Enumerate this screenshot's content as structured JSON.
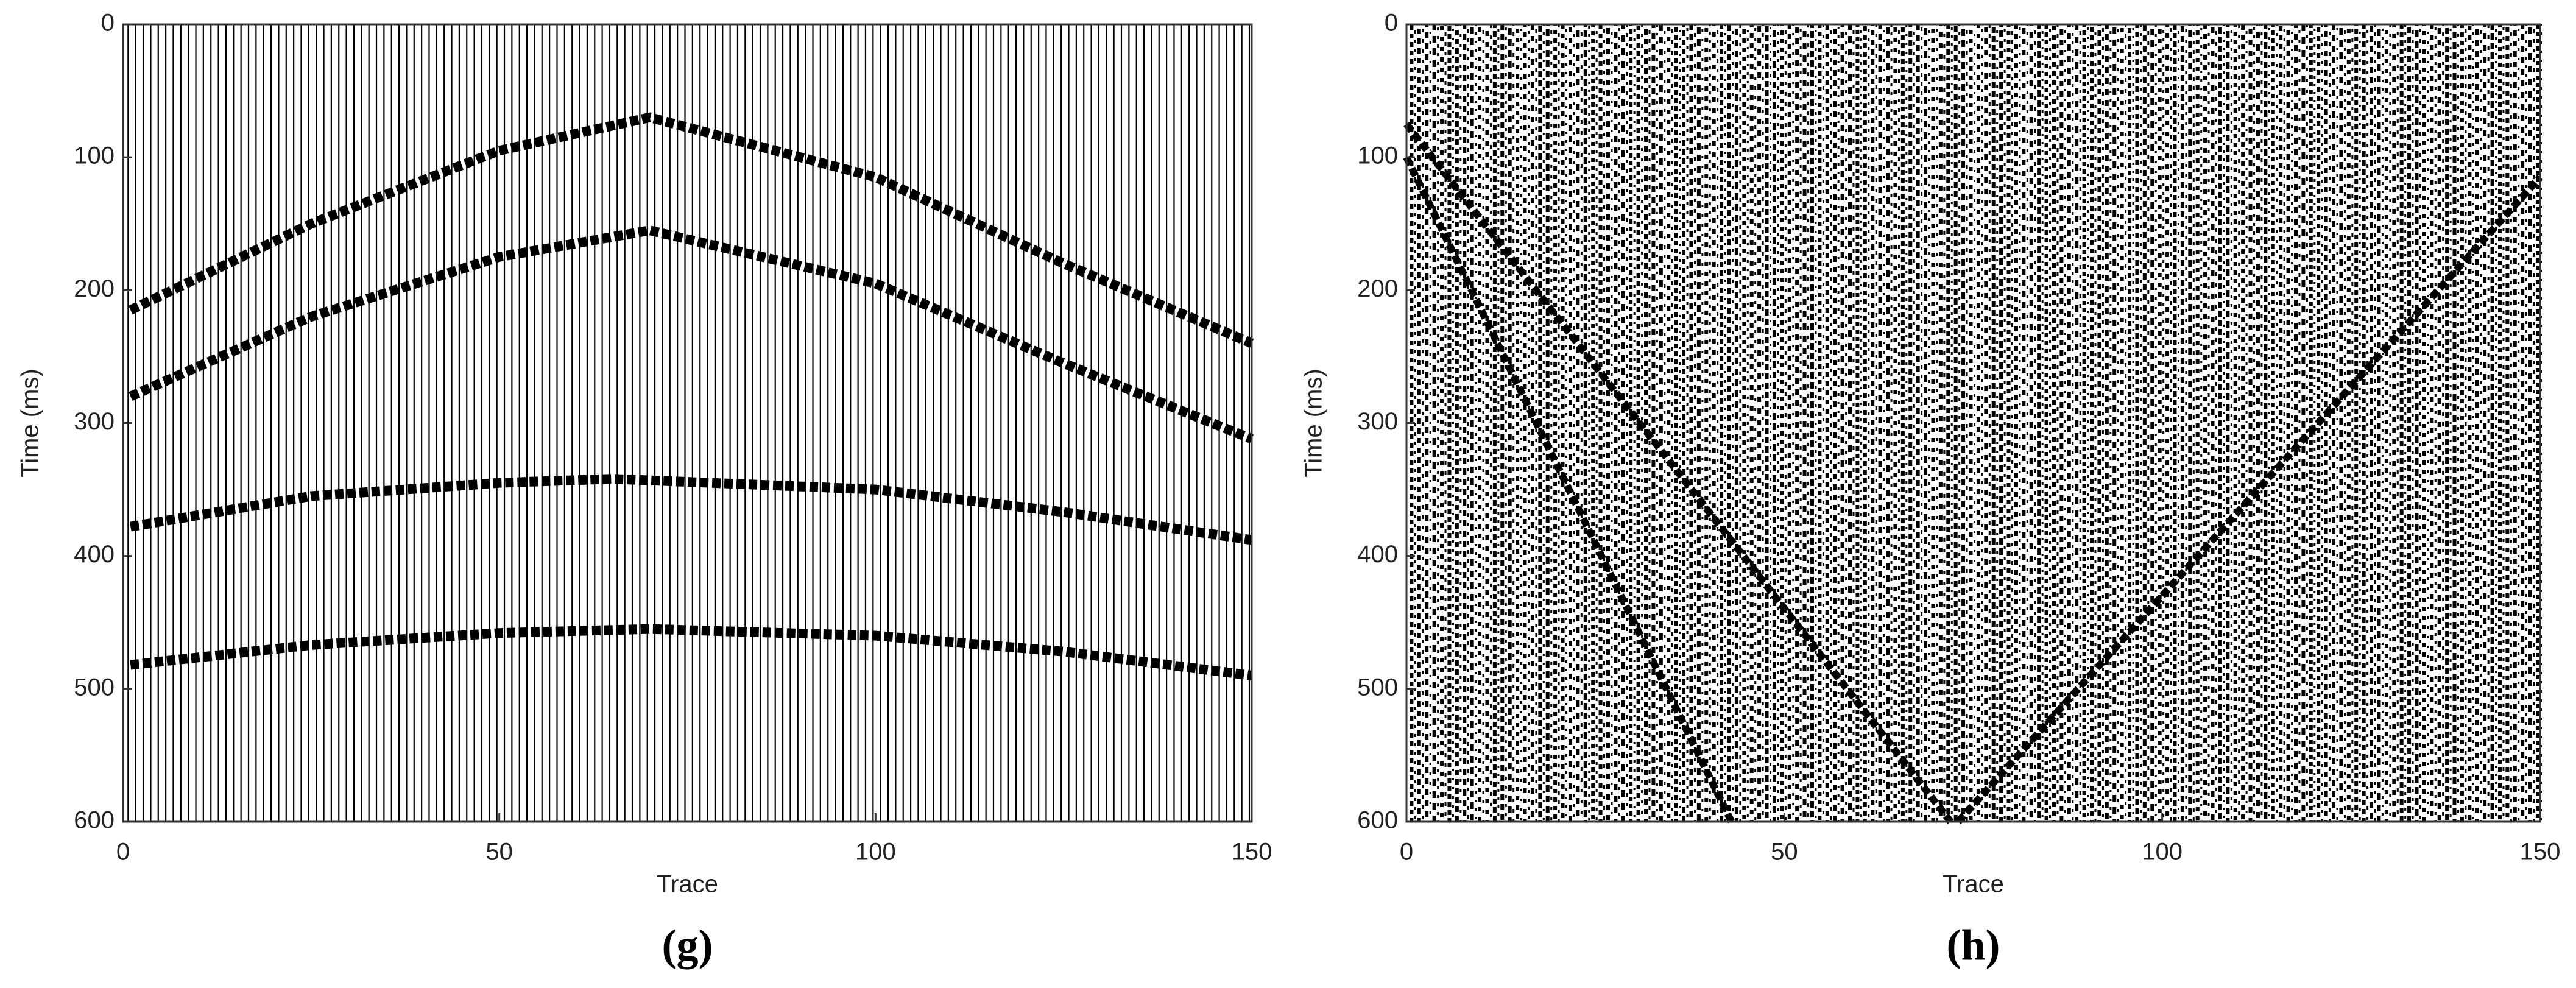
{
  "chart_data": [
    {
      "type": "line",
      "caption": "(g)",
      "xlabel": "Trace",
      "ylabel": "Time (ms)",
      "xlim": [
        0,
        150
      ],
      "ylim": [
        0,
        600
      ],
      "y_inverted": true,
      "xticks": [
        0,
        50,
        100,
        150
      ],
      "yticks": [
        0,
        100,
        200,
        300,
        400,
        500,
        600
      ],
      "series": [
        {
          "color": "#000000",
          "x": [
            1,
            25,
            50,
            70,
            100,
            125,
            150
          ],
          "values": [
            215,
            150,
            95,
            70,
            115,
            180,
            240
          ]
        },
        {
          "color": "#000000",
          "x": [
            1,
            25,
            50,
            70,
            100,
            125,
            150
          ],
          "values": [
            280,
            220,
            175,
            155,
            195,
            255,
            312
          ]
        },
        {
          "color": "#000000",
          "x": [
            1,
            25,
            50,
            65,
            100,
            125,
            150
          ],
          "values": [
            378,
            355,
            345,
            342,
            350,
            367,
            388
          ]
        },
        {
          "color": "#000000",
          "x": [
            1,
            25,
            50,
            70,
            100,
            125,
            150
          ],
          "values": [
            482,
            467,
            458,
            455,
            460,
            472,
            490
          ]
        }
      ]
    },
    {
      "type": "line",
      "caption": "(h)",
      "xlabel": "Trace",
      "ylabel": "Time (ms)",
      "xlim": [
        0,
        150
      ],
      "ylim": [
        0,
        600
      ],
      "y_inverted": true,
      "xticks": [
        0,
        50,
        100,
        150
      ],
      "yticks": [
        0,
        100,
        200,
        300,
        400,
        500,
        600
      ],
      "series": [
        {
          "color": "#000000",
          "x": [
            0,
            72
          ],
          "values": [
            75,
            600
          ]
        },
        {
          "color": "#000000",
          "x": [
            0,
            43
          ],
          "values": [
            100,
            600
          ]
        },
        {
          "color": "#000000",
          "x": [
            73,
            150
          ],
          "values": [
            600,
            115
          ]
        }
      ]
    }
  ]
}
